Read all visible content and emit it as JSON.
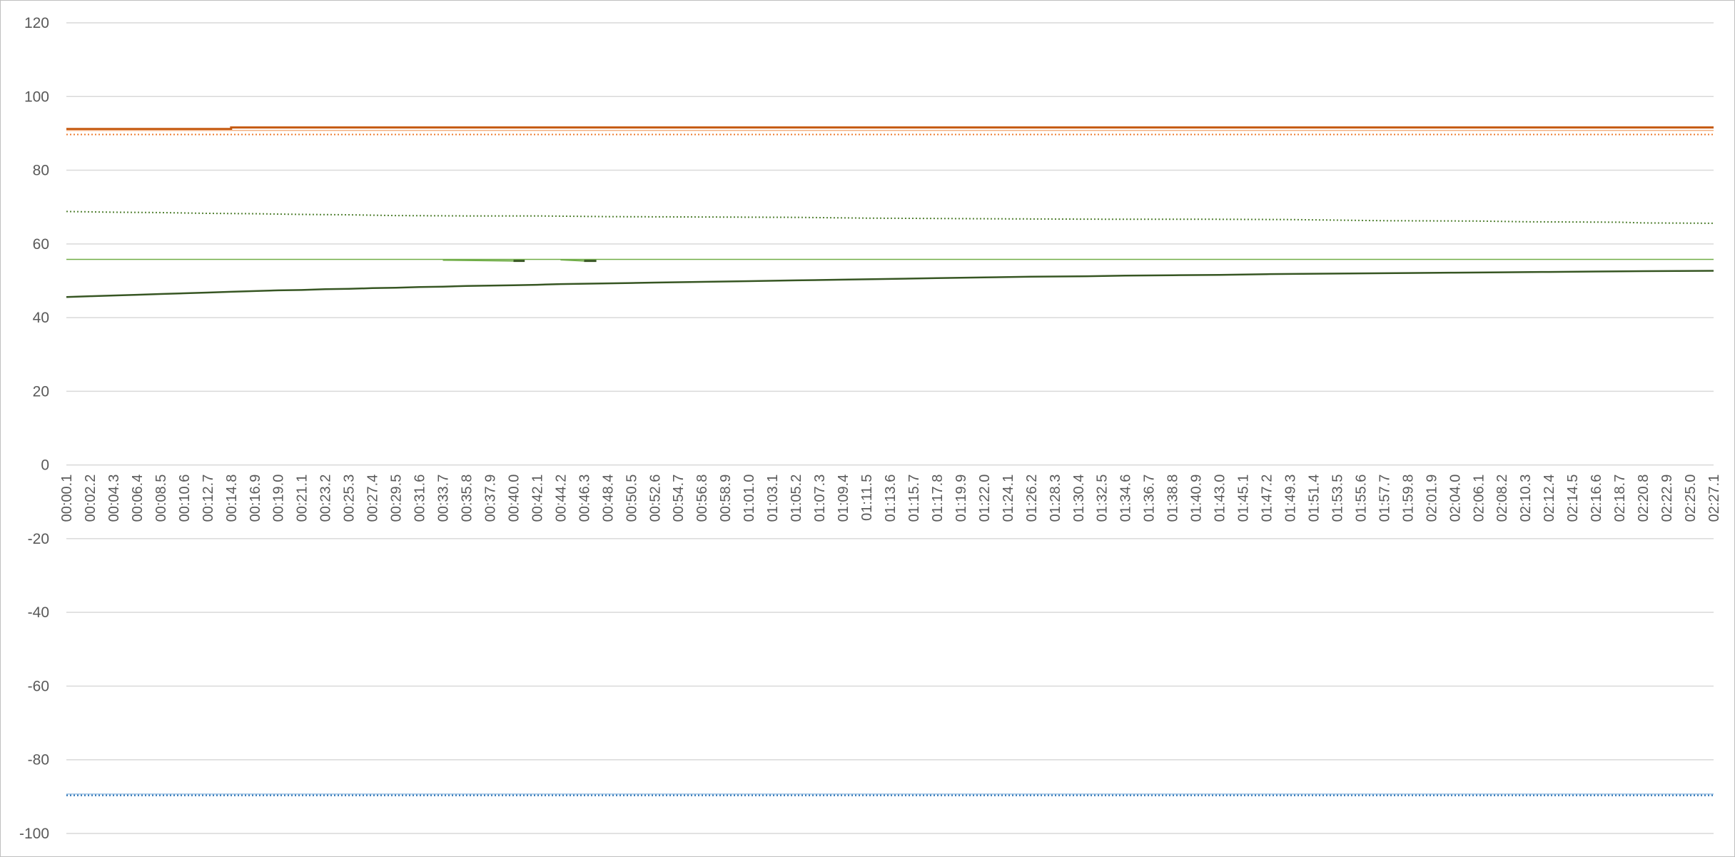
{
  "chart_data": {
    "type": "line",
    "title": "",
    "xlabel": "",
    "ylabel": "",
    "ylim": [
      -100,
      120
    ],
    "ytick_step": 20,
    "yticks": [
      "-100",
      "-80",
      "-60",
      "-40",
      "-20",
      "0",
      "20",
      "40",
      "60",
      "80",
      "100",
      "120"
    ],
    "grid": true,
    "legend": "none",
    "x_start": "00:00.1",
    "x_end": "02:27.1",
    "x_tick_labels": [
      "00:00.1",
      "00:02.2",
      "00:04.3",
      "00:06.4",
      "00:08.5",
      "00:10.6",
      "00:12.7",
      "00:14.8",
      "00:16.9",
      "00:19.0",
      "00:21.1",
      "00:23.2",
      "00:25.3",
      "00:27.4",
      "00:29.5",
      "00:31.6",
      "00:33.7",
      "00:35.8",
      "00:37.9",
      "00:40.0",
      "00:42.1",
      "00:44.2",
      "00:46.3",
      "00:48.4",
      "00:50.5",
      "00:52.6",
      "00:54.7",
      "00:56.8",
      "00:58.9",
      "01:01.0",
      "01:03.1",
      "01:05.2",
      "01:07.3",
      "01:09.4",
      "01:11.5",
      "01:13.6",
      "01:15.7",
      "01:17.8",
      "01:19.9",
      "01:22.0",
      "01:24.1",
      "01:26.2",
      "01:28.3",
      "01:30.4",
      "01:32.5",
      "01:34.6",
      "01:36.7",
      "01:38.8",
      "01:40.9",
      "01:43.0",
      "01:45.1",
      "01:47.2",
      "01:49.3",
      "01:51.4",
      "01:53.5",
      "01:55.6",
      "01:57.7",
      "01:59.8",
      "02:01.9",
      "02:04.0",
      "02:06.1",
      "02:08.2",
      "02:10.3",
      "02:12.4",
      "02:14.5",
      "02:16.6",
      "02:18.7",
      "02:20.8",
      "02:22.9",
      "02:25.0",
      "02:27.1"
    ],
    "series": [
      {
        "color": "#c55a11",
        "style": "solid",
        "width": 3,
        "points": [
          [
            "00:00.1",
            91.2
          ],
          [
            "00:14.8",
            91.2
          ],
          [
            "00:14.8",
            91.6
          ],
          [
            "02:27.1",
            91.6
          ]
        ]
      },
      {
        "color": "#f4b183",
        "style": "solid",
        "width": 1.5,
        "points": [
          [
            "00:00.1",
            90.8
          ],
          [
            "02:27.1",
            90.8
          ]
        ]
      },
      {
        "color": "#ed7d31",
        "style": "dotted",
        "width": 2,
        "points": [
          [
            "00:00.1",
            89.7
          ],
          [
            "02:27.1",
            89.7
          ]
        ]
      },
      {
        "color": "#548235",
        "style": "dotted",
        "width": 2,
        "points": [
          [
            "00:00.1",
            68.8
          ],
          [
            "00:04.3",
            68.6
          ],
          [
            "00:08.5",
            68.5
          ],
          [
            "00:12.7",
            68.3
          ],
          [
            "00:16.9",
            68.2
          ],
          [
            "00:21.1",
            68.0
          ],
          [
            "00:25.3",
            67.9
          ],
          [
            "00:29.5",
            67.7
          ],
          [
            "00:35.8",
            67.6
          ],
          [
            "00:42.1",
            67.6
          ],
          [
            "00:48.4",
            67.4
          ],
          [
            "00:56.8",
            67.3
          ],
          [
            "01:05.2",
            67.2
          ],
          [
            "01:11.5",
            67.0
          ],
          [
            "01:17.8",
            66.9
          ],
          [
            "01:24.1",
            66.8
          ],
          [
            "01:32.5",
            66.7
          ],
          [
            "01:40.9",
            66.7
          ],
          [
            "01:49.3",
            66.6
          ],
          [
            "01:57.7",
            66.3
          ],
          [
            "02:06.1",
            66.2
          ],
          [
            "02:10.3",
            66.0
          ],
          [
            "02:18.7",
            65.9
          ],
          [
            "02:20.8",
            65.7
          ],
          [
            "02:27.1",
            65.6
          ]
        ]
      },
      {
        "color": "#70ad47",
        "style": "solid",
        "width": 1.5,
        "points": [
          [
            "00:00.1",
            55.8
          ],
          [
            "02:27.1",
            55.8
          ]
        ]
      },
      {
        "color": "#70ad47",
        "style": "solid",
        "width": 2,
        "points": [
          [
            "00:33.7",
            55.6
          ],
          [
            "00:40.0",
            55.4
          ]
        ]
      },
      {
        "color": "#375623",
        "style": "solid",
        "width": 3,
        "points": [
          [
            "00:40.0",
            55.4
          ],
          [
            "00:41.0",
            55.4
          ]
        ]
      },
      {
        "color": "#70ad47",
        "style": "solid",
        "width": 2,
        "points": [
          [
            "00:44.2",
            55.7
          ],
          [
            "00:46.3",
            55.4
          ]
        ]
      },
      {
        "color": "#375623",
        "style": "solid",
        "width": 3,
        "points": [
          [
            "00:46.3",
            55.4
          ],
          [
            "00:47.4",
            55.4
          ]
        ]
      },
      {
        "color": "#375623",
        "style": "solid",
        "width": 2.5,
        "points": [
          [
            "00:00.1",
            45.6
          ],
          [
            "00:02.2",
            45.8
          ],
          [
            "00:04.3",
            46.0
          ],
          [
            "00:06.4",
            46.2
          ],
          [
            "00:08.5",
            46.4
          ],
          [
            "00:10.6",
            46.6
          ],
          [
            "00:12.7",
            46.8
          ],
          [
            "00:14.8",
            47.0
          ],
          [
            "00:16.9",
            47.2
          ],
          [
            "00:19.0",
            47.4
          ],
          [
            "00:21.1",
            47.5
          ],
          [
            "00:23.2",
            47.7
          ],
          [
            "00:25.3",
            47.8
          ],
          [
            "00:27.4",
            48.0
          ],
          [
            "00:29.5",
            48.1
          ],
          [
            "00:31.6",
            48.3
          ],
          [
            "00:33.7",
            48.4
          ],
          [
            "00:35.8",
            48.6
          ],
          [
            "00:37.9",
            48.7
          ],
          [
            "00:40.0",
            48.8
          ],
          [
            "00:42.1",
            48.9
          ],
          [
            "00:44.2",
            49.1
          ],
          [
            "00:46.3",
            49.2
          ],
          [
            "00:48.4",
            49.3
          ],
          [
            "00:50.5",
            49.4
          ],
          [
            "00:52.6",
            49.5
          ],
          [
            "00:54.7",
            49.6
          ],
          [
            "00:56.8",
            49.7
          ],
          [
            "00:58.9",
            49.8
          ],
          [
            "01:01.0",
            49.9
          ],
          [
            "01:05.2",
            50.1
          ],
          [
            "01:09.4",
            50.3
          ],
          [
            "01:13.6",
            50.5
          ],
          [
            "01:17.8",
            50.7
          ],
          [
            "01:22.0",
            50.9
          ],
          [
            "01:26.2",
            51.1
          ],
          [
            "01:30.4",
            51.2
          ],
          [
            "01:34.6",
            51.4
          ],
          [
            "01:38.8",
            51.5
          ],
          [
            "01:43.0",
            51.6
          ],
          [
            "01:47.2",
            51.8
          ],
          [
            "01:51.4",
            51.9
          ],
          [
            "01:55.6",
            52.0
          ],
          [
            "01:59.8",
            52.1
          ],
          [
            "02:04.0",
            52.2
          ],
          [
            "02:08.2",
            52.3
          ],
          [
            "02:12.4",
            52.4
          ],
          [
            "02:16.6",
            52.5
          ],
          [
            "02:20.8",
            52.6
          ],
          [
            "02:27.1",
            52.7
          ]
        ]
      },
      {
        "color": "#2e75b6",
        "style": "dotted",
        "width": 3,
        "points": [
          [
            "00:00.1",
            -89.6
          ],
          [
            "02:27.1",
            -89.6
          ]
        ]
      },
      {
        "color": "#9dc3e6",
        "style": "solid",
        "width": 1.5,
        "points": [
          [
            "00:00.1",
            -89.3
          ],
          [
            "02:27.1",
            -89.3
          ]
        ]
      }
    ]
  }
}
